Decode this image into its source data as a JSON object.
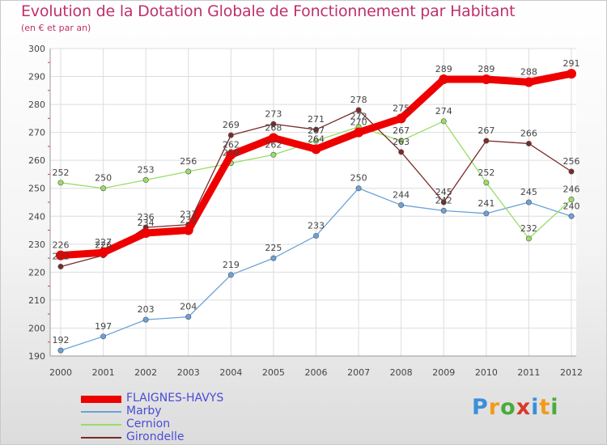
{
  "chart_data": {
    "type": "line",
    "title": "Evolution de la Dotation Globale de Fonctionnement par Habitant",
    "subtitle": "(en € et par an)",
    "x": [
      "2000",
      "2001",
      "2002",
      "2003",
      "2004",
      "2005",
      "2006",
      "2007",
      "2008",
      "2009",
      "2010",
      "2011",
      "2012"
    ],
    "ylim": [
      190,
      300
    ],
    "yticks": [
      190,
      200,
      210,
      220,
      230,
      240,
      250,
      260,
      270,
      280,
      290,
      300
    ],
    "grid": true,
    "legend_position": "bottom-left",
    "series": [
      {
        "name": "FLAIGNES-HAVYS",
        "color": "#ee0000",
        "values": [
          226,
          227,
          234,
          235,
          262,
          268,
          264,
          270,
          275,
          289,
          289,
          288,
          291
        ],
        "labels": [
          "226",
          "227",
          "234",
          "235",
          "262",
          "268",
          "264",
          "270",
          "275",
          "289",
          "289",
          "288",
          "291"
        ]
      },
      {
        "name": "Marby",
        "color": "#6aa2d8",
        "values": [
          192,
          197,
          203,
          204,
          219,
          225,
          233,
          250,
          244,
          242,
          241,
          245,
          240
        ],
        "labels": [
          "192",
          "197",
          "203",
          "204",
          "219",
          "225",
          "233",
          "250",
          "244",
          "242",
          "241",
          "245",
          "240"
        ]
      },
      {
        "name": "Cernion",
        "color": "#99dd66",
        "values": [
          252,
          250,
          253,
          256,
          259,
          262,
          267,
          272,
          267,
          274,
          252,
          232,
          246
        ],
        "labels": [
          "252",
          "250",
          "253",
          "256",
          "259",
          "262",
          "267",
          "272",
          "267",
          "274",
          "252",
          "232",
          "246"
        ]
      },
      {
        "name": "Girondelle",
        "color": "#7a2a2a",
        "values": [
          222,
          226,
          236,
          237,
          269,
          273,
          271,
          278,
          263,
          245,
          267,
          266,
          256
        ],
        "labels": [
          "222",
          "226",
          "236",
          "237",
          "269",
          "273",
          "271",
          "278",
          "263",
          "245",
          "267",
          "266",
          "256"
        ]
      }
    ]
  },
  "brand": {
    "letters": [
      "P",
      "r",
      "o",
      "x",
      "i",
      "t",
      "i"
    ],
    "colors": [
      "#3a8fd9",
      "#f39a1a",
      "#4aab3a",
      "#d83a2a",
      "#3a8fd9",
      "#f39a1a",
      "#4aab3a"
    ]
  }
}
